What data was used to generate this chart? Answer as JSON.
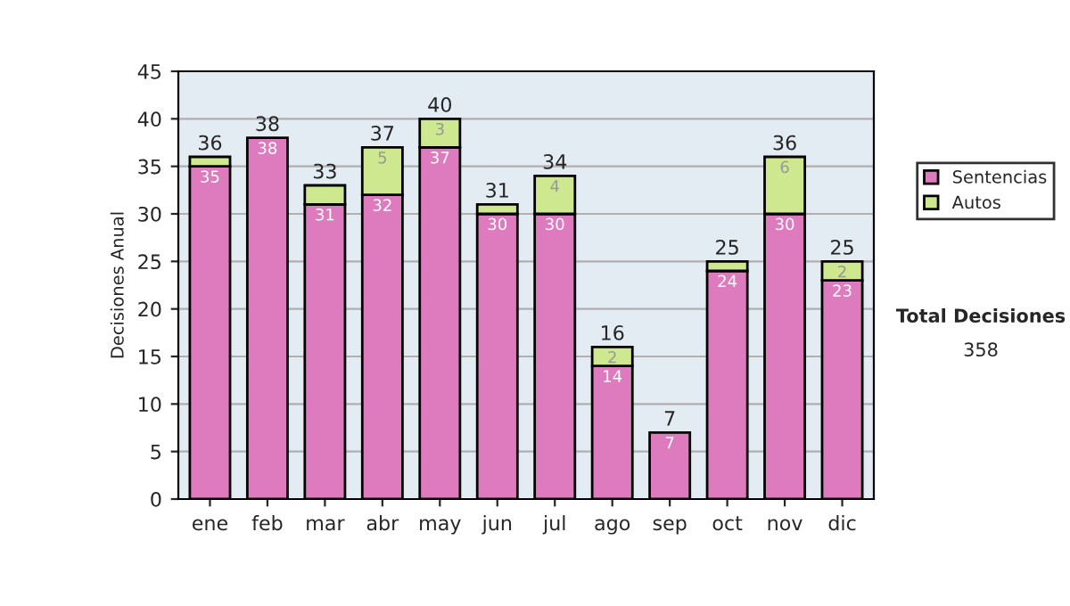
{
  "chart_data": {
    "type": "bar",
    "stacked": true,
    "ylabel": "Decisiones Anual",
    "categories": [
      "ene",
      "feb",
      "mar",
      "abr",
      "may",
      "jun",
      "jul",
      "ago",
      "sep",
      "oct",
      "nov",
      "dic"
    ],
    "series": [
      {
        "name": "Sentencias",
        "color": "#de7bbf",
        "values": [
          35,
          38,
          31,
          32,
          37,
          30,
          30,
          14,
          7,
          24,
          30,
          23
        ],
        "value_labels": [
          "35",
          "38",
          "31",
          "32",
          "37",
          "30",
          "30",
          "14",
          "7",
          "24",
          "30",
          "23"
        ]
      },
      {
        "name": "Autos",
        "color": "#cde88f",
        "values": [
          1,
          0,
          2,
          5,
          3,
          1,
          4,
          2,
          0,
          1,
          6,
          2
        ],
        "value_labels": [
          null,
          null,
          null,
          "5",
          "3",
          null,
          "4",
          "2",
          null,
          null,
          "6",
          "2"
        ]
      }
    ],
    "totals": [
      "36",
      "38",
      "33",
      "37",
      "40",
      "31",
      "34",
      "16",
      "7",
      "25",
      "36",
      "25"
    ],
    "ylim": [
      0,
      45
    ],
    "yticks": [
      0,
      5,
      10,
      15,
      20,
      25,
      30,
      35,
      40,
      45
    ],
    "grid": "y",
    "legend": "right",
    "annotations": [
      "Total Decisiones",
      "358"
    ]
  }
}
